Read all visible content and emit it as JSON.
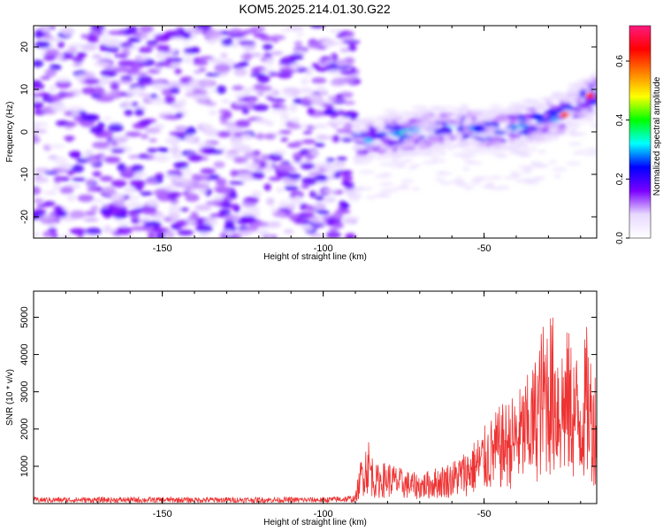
{
  "figure": {
    "title": "KOM5.2025.214.01.30.G22"
  },
  "chart_data": [
    {
      "type": "heatmap",
      "xlabel": "Height of straight line (km)",
      "ylabel": "Frequency (Hz)",
      "xlim": [
        -190,
        -15
      ],
      "ylim": [
        -25,
        25
      ],
      "xticks": [
        -150,
        -100,
        -50
      ],
      "yticks": [
        -20,
        -10,
        0,
        10,
        20
      ],
      "colorbar": {
        "label": "Normalized spectral amplitude",
        "range": [
          0.0,
          0.72
        ],
        "ticks": [
          0.0,
          0.2,
          0.4,
          0.6
        ],
        "tick_labels": [
          "0.0",
          "0.2",
          "0.4",
          "0.6"
        ],
        "colormap": [
          "#ffffff",
          "#e8d8ff",
          "#7a00ff",
          "#0000ff",
          "#00ffff",
          "#00ff00",
          "#ffff00",
          "#ff8000",
          "#ff0000",
          "#ff1a80"
        ]
      },
      "noise_region": {
        "x": [
          -190,
          -90
        ],
        "y": [
          -25,
          25
        ],
        "amplitude": 0.15
      },
      "signal_ridge": [
        {
          "x": -90,
          "y": -2
        },
        {
          "x": -85,
          "y": -2
        },
        {
          "x": -80,
          "y": -1
        },
        {
          "x": -70,
          "y": 0
        },
        {
          "x": -60,
          "y": 1
        },
        {
          "x": -50,
          "y": 0
        },
        {
          "x": -40,
          "y": 1
        },
        {
          "x": -30,
          "y": 3
        },
        {
          "x": -25,
          "y": 4
        },
        {
          "x": -20,
          "y": 7
        },
        {
          "x": -15,
          "y": 9
        }
      ],
      "peak_amplitude": 0.7,
      "grid": false
    },
    {
      "type": "line",
      "xlabel": "Height of straight line (km)",
      "ylabel": "SNR (10 * v/v)",
      "xlim": [
        -190,
        -15
      ],
      "ylim": [
        0,
        5700
      ],
      "xticks": [
        -150,
        -100,
        -50
      ],
      "yticks": [
        1000,
        2000,
        3000,
        4000,
        5000
      ],
      "series": [
        {
          "color": "#ee3333",
          "x": [
            -190,
            -100,
            -90,
            -88,
            -86,
            -84,
            -80,
            -75,
            -70,
            -60,
            -55,
            -50,
            -45,
            -40,
            -35,
            -32,
            -30,
            -28,
            -26,
            -24,
            -22,
            -20,
            -18,
            -16,
            -15
          ],
          "y": [
            150,
            150,
            200,
            1200,
            1600,
            900,
            1000,
            800,
            700,
            1000,
            1300,
            1800,
            2300,
            2600,
            3200,
            4200,
            4700,
            4300,
            3900,
            4100,
            3700,
            3400,
            4200,
            3200,
            3300
          ]
        }
      ],
      "grid": false
    }
  ]
}
